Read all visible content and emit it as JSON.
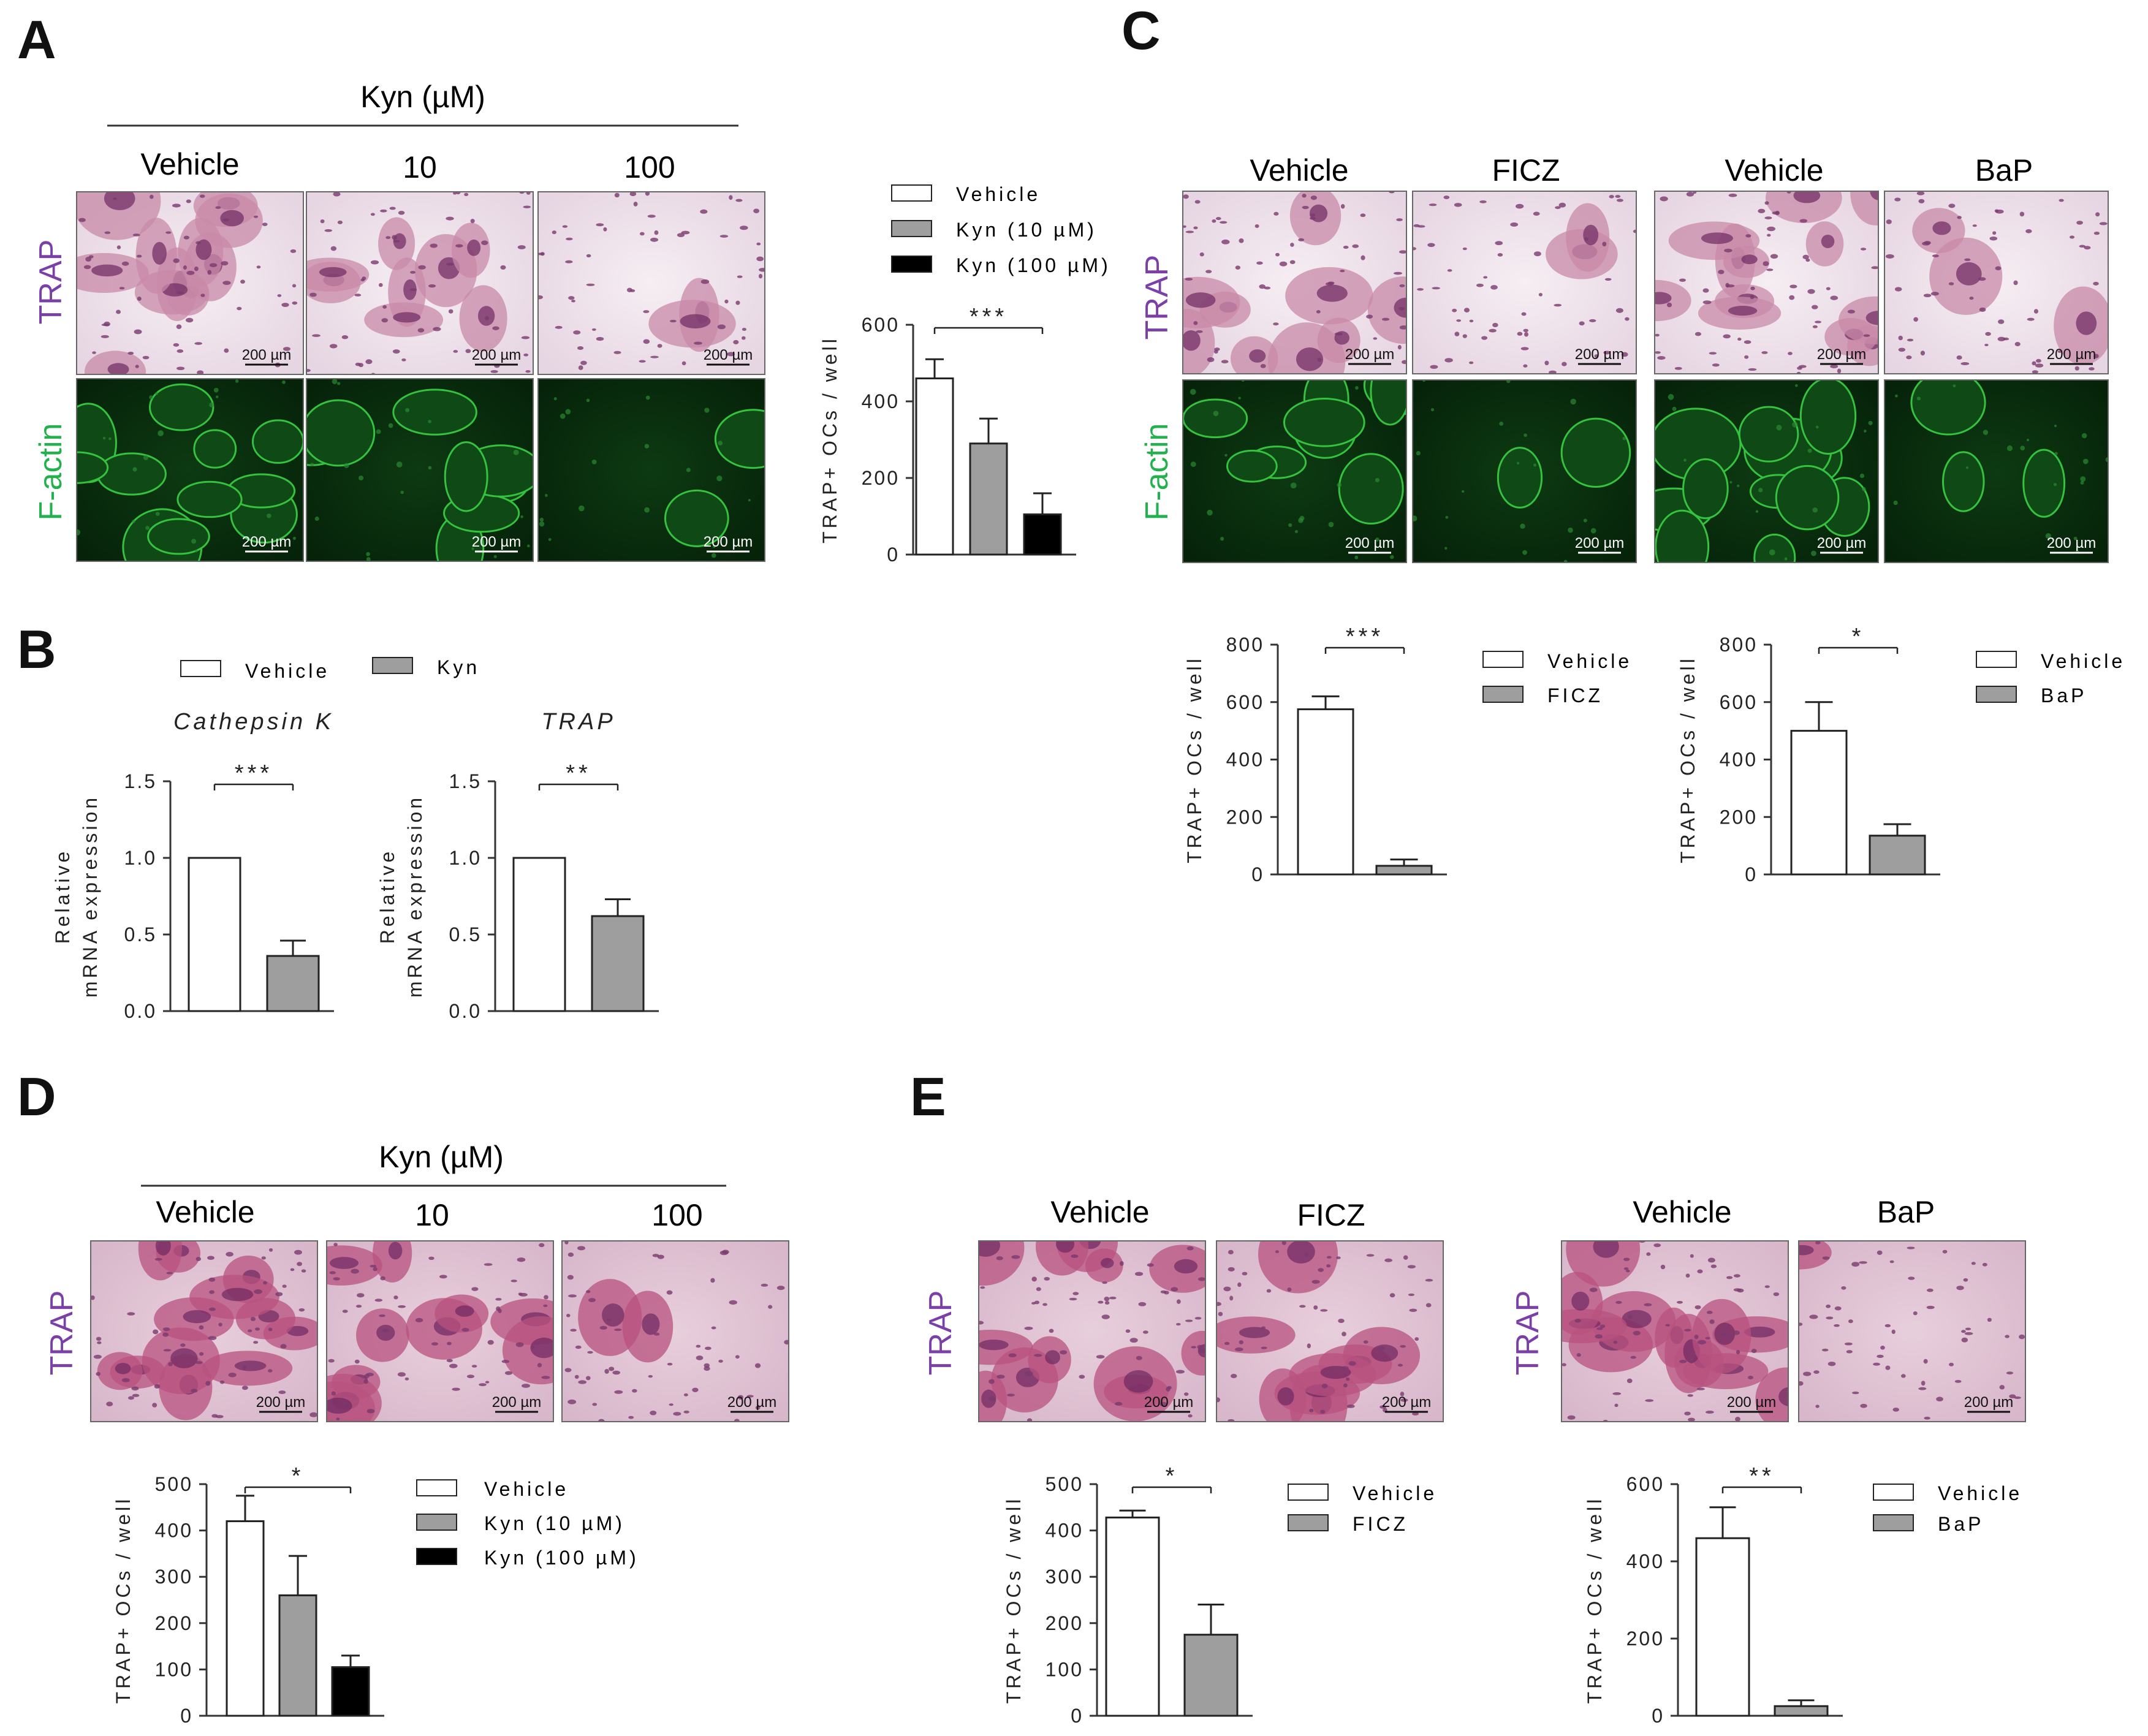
{
  "panel_labels": {
    "a": "A",
    "b": "B",
    "c": "C",
    "d": "D",
    "e": "E"
  },
  "scale_bar": "200 µm",
  "colors": {
    "trap_label": "#7b3fa8",
    "factin_label": "#22b14c",
    "bar_white": "#ffffff",
    "bar_gray": "#9e9e9e",
    "bar_black": "#000000",
    "axis": "#333333"
  },
  "panel_a": {
    "group_label": "Kyn (µM)",
    "columns": [
      "Vehicle",
      "10",
      "100"
    ],
    "row_labels": [
      "TRAP",
      "F-actin"
    ],
    "legend": [
      "Vehicle",
      "Kyn (10 µM)",
      "Kyn (100 µM)"
    ]
  },
  "panel_b": {
    "legend": [
      "Vehicle",
      "Kyn"
    ],
    "chart_titles": [
      "Cathepsin K",
      "TRAP"
    ],
    "ylabel_line1": "Relative",
    "ylabel_line2": "mRNA expression"
  },
  "panel_c": {
    "columns": [
      "Vehicle",
      "FICZ",
      "Vehicle",
      "BaP"
    ],
    "row_labels": [
      "TRAP",
      "F-actin"
    ],
    "legend_1": [
      "Vehicle",
      "FICZ"
    ],
    "legend_2": [
      "Vehicle",
      "BaP"
    ]
  },
  "panel_d": {
    "group_label": "Kyn (µM)",
    "columns": [
      "Vehicle",
      "10",
      "100"
    ],
    "row_label": "TRAP",
    "legend": [
      "Vehicle",
      "Kyn (10 µM)",
      "Kyn (100 µM)"
    ]
  },
  "panel_e": {
    "columns_1": [
      "Vehicle",
      "FICZ"
    ],
    "columns_2": [
      "Vehicle",
      "BaP"
    ],
    "row_label": "TRAP",
    "legend_1": [
      "Vehicle",
      "FICZ"
    ],
    "legend_2": [
      "Vehicle",
      "BaP"
    ]
  },
  "chart_data": [
    {
      "id": "A",
      "type": "bar",
      "categories": [
        "Vehicle",
        "Kyn (10 µM)",
        "Kyn (100 µM)"
      ],
      "values": [
        460,
        290,
        105
      ],
      "errors": [
        50,
        65,
        55
      ],
      "ylabel": "TRAP+ OCs / well",
      "ylim": [
        0,
        600
      ],
      "yticks": [
        "0",
        "200",
        "400",
        "600"
      ],
      "significance": "***",
      "fills": [
        "white",
        "gray",
        "black"
      ]
    },
    {
      "id": "B1",
      "type": "bar",
      "title": "Cathepsin K",
      "categories": [
        "Vehicle",
        "Kyn"
      ],
      "values": [
        1.0,
        0.36
      ],
      "errors": [
        0,
        0.1
      ],
      "ylabel": "Relative mRNA expression",
      "ylim": [
        0,
        1.5
      ],
      "yticks": [
        "0.0",
        "0.5",
        "1.0",
        "1.5"
      ],
      "significance": "***",
      "fills": [
        "white",
        "gray"
      ]
    },
    {
      "id": "B2",
      "type": "bar",
      "title": "TRAP",
      "categories": [
        "Vehicle",
        "Kyn"
      ],
      "values": [
        1.0,
        0.62
      ],
      "errors": [
        0,
        0.11
      ],
      "ylabel": "Relative mRNA expression",
      "ylim": [
        0,
        1.5
      ],
      "yticks": [
        "0.0",
        "0.5",
        "1.0",
        "1.5"
      ],
      "significance": "**",
      "fills": [
        "white",
        "gray"
      ]
    },
    {
      "id": "C1",
      "type": "bar",
      "categories": [
        "Vehicle",
        "FICZ"
      ],
      "values": [
        575,
        30
      ],
      "errors": [
        45,
        22
      ],
      "ylabel": "TRAP+ OCs / well",
      "ylim": [
        0,
        800
      ],
      "yticks": [
        "0",
        "200",
        "400",
        "600",
        "800"
      ],
      "significance": "***",
      "fills": [
        "white",
        "gray"
      ]
    },
    {
      "id": "C2",
      "type": "bar",
      "categories": [
        "Vehicle",
        "BaP"
      ],
      "values": [
        500,
        135
      ],
      "errors": [
        100,
        40
      ],
      "ylabel": "TRAP+ OCs / well",
      "ylim": [
        0,
        800
      ],
      "yticks": [
        "0",
        "200",
        "400",
        "600",
        "800"
      ],
      "significance": "*",
      "fills": [
        "white",
        "gray"
      ]
    },
    {
      "id": "D",
      "type": "bar",
      "categories": [
        "Vehicle",
        "Kyn (10 µM)",
        "Kyn (100 µM)"
      ],
      "values": [
        420,
        260,
        105
      ],
      "errors": [
        55,
        85,
        25
      ],
      "ylabel": "TRAP+ OCs / well",
      "ylim": [
        0,
        500
      ],
      "yticks": [
        "0",
        "100",
        "200",
        "300",
        "400",
        "500"
      ],
      "significance": "*",
      "fills": [
        "white",
        "gray",
        "black"
      ]
    },
    {
      "id": "E1",
      "type": "bar",
      "categories": [
        "Vehicle",
        "FICZ"
      ],
      "values": [
        428,
        175
      ],
      "errors": [
        15,
        65
      ],
      "ylabel": "TRAP+ OCs / well",
      "ylim": [
        0,
        500
      ],
      "yticks": [
        "0",
        "100",
        "200",
        "300",
        "400",
        "500"
      ],
      "significance": "*",
      "fills": [
        "white",
        "gray"
      ]
    },
    {
      "id": "E2",
      "type": "bar",
      "categories": [
        "Vehicle",
        "BaP"
      ],
      "values": [
        460,
        25
      ],
      "errors": [
        80,
        15
      ],
      "ylabel": "TRAP+ OCs / well",
      "ylim": [
        0,
        600
      ],
      "yticks": [
        "0",
        "200",
        "400",
        "600"
      ],
      "significance": "**",
      "fills": [
        "white",
        "gray"
      ]
    }
  ]
}
